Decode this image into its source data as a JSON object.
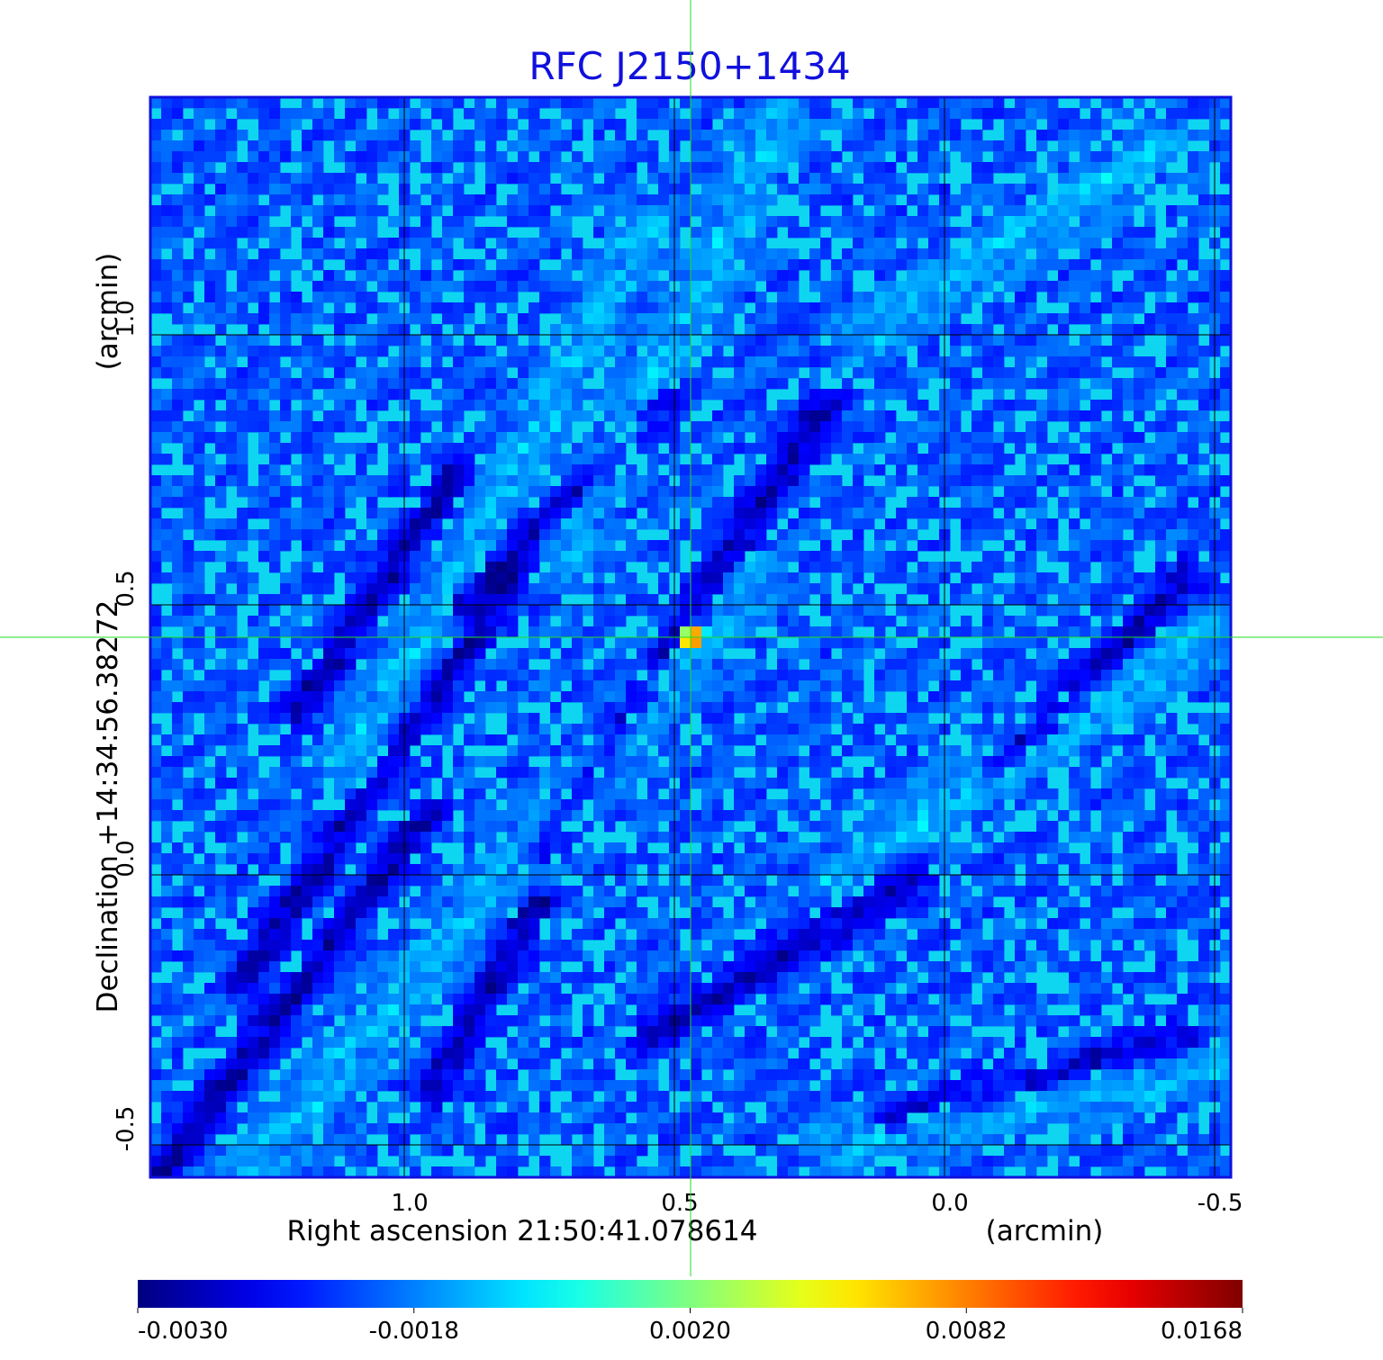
{
  "chart_data": {
    "type": "heatmap",
    "title": "RFC J2150+1434",
    "xlabel": "Right ascension  21:50:41.078614",
    "xlabel_unit": "(arcmin)",
    "ylabel": "Declination  +14:34:56.38272",
    "ylabel_unit": "(arcmin)",
    "x_ticks": [
      1.0,
      0.5,
      0.0,
      -0.5
    ],
    "x_tick_labels": [
      "1.0",
      "0.5",
      "0.0",
      "-0.5"
    ],
    "y_ticks": [
      1.0,
      0.5,
      0.0,
      -0.5
    ],
    "y_tick_labels": [
      "1.0",
      "0.5",
      "0.0",
      "-0.5"
    ],
    "xlim": [
      1.47,
      -0.53
    ],
    "ylim": [
      -0.56,
      1.44
    ],
    "grid": true,
    "crosshair": {
      "x": 0.47,
      "y": 0.44
    },
    "peak": {
      "x": 0.47,
      "y": 0.44,
      "value": 0.0168
    },
    "colormap": "jet",
    "colorbar": {
      "min": -0.003,
      "max": 0.0168,
      "ticks": [
        -0.003,
        -0.0018,
        0.002,
        0.0082,
        0.0168
      ],
      "tick_labels": [
        "-0.0030",
        "-0.0018",
        "0.0020",
        "0.0082",
        "0.0168"
      ]
    },
    "background_level": 0.001,
    "negative_streaks": [
      {
        "x1": 1.45,
        "y1": -0.55,
        "x2": 0.95,
        "y2": 0.12
      },
      {
        "x1": 1.3,
        "y1": -0.2,
        "x2": 0.8,
        "y2": 0.55
      },
      {
        "x1": 1.2,
        "y1": 0.3,
        "x2": 0.9,
        "y2": 0.75
      },
      {
        "x1": 0.75,
        "y1": 0.05,
        "x2": 0.22,
        "y2": 0.87
      },
      {
        "x1": 0.95,
        "y1": -0.4,
        "x2": 0.75,
        "y2": -0.05
      },
      {
        "x1": 0.9,
        "y1": 0.5,
        "x2": 0.5,
        "y2": 0.88
      },
      {
        "x1": 0.1,
        "y1": -0.45,
        "x2": -0.45,
        "y2": -0.3
      },
      {
        "x1": -0.1,
        "y1": 0.2,
        "x2": -0.45,
        "y2": 0.55
      },
      {
        "x1": 0.55,
        "y1": -0.3,
        "x2": 0.05,
        "y2": 0.0
      }
    ],
    "positive_streaks": [
      {
        "x1": 1.3,
        "y1": -0.56,
        "x2": 0.35,
        "y2": 0.55
      },
      {
        "x1": 1.1,
        "y1": 0.2,
        "x2": 0.55,
        "y2": 1.2
      },
      {
        "x1": 0.7,
        "y1": 0.6,
        "x2": 0.3,
        "y2": 1.4
      },
      {
        "x1": 0.2,
        "y1": 0.0,
        "x2": -0.5,
        "y2": 0.45
      },
      {
        "x1": 0.2,
        "y1": -0.5,
        "x2": -0.5,
        "y2": -0.35
      },
      {
        "x1": 0.15,
        "y1": 1.0,
        "x2": -0.4,
        "y2": 1.35
      }
    ]
  },
  "colors": {
    "title": "#1010dd",
    "frame": "#1010dd",
    "grid": "#000000",
    "crosshair": "#22dd22"
  }
}
